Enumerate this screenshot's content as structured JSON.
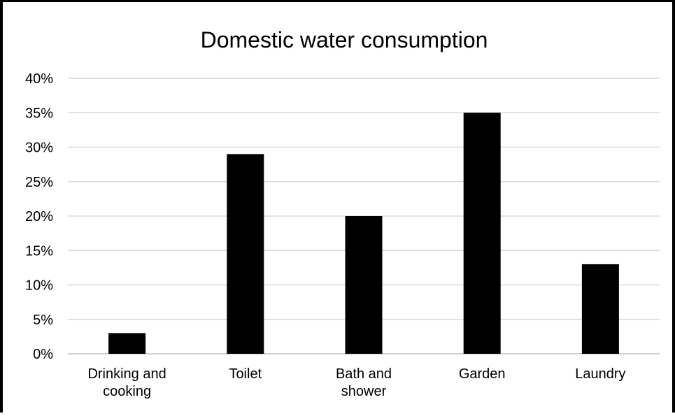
{
  "chart_data": {
    "type": "bar",
    "title": "Domestic water consumption",
    "xlabel": "",
    "ylabel": "",
    "categories": [
      "Drinking and cooking",
      "Toilet",
      "Bath and shower",
      "Garden",
      "Laundry"
    ],
    "category_lines": [
      [
        "Drinking and",
        "cooking"
      ],
      [
        "Toilet"
      ],
      [
        "Bath and",
        "shower"
      ],
      [
        "Garden"
      ],
      [
        "Laundry"
      ]
    ],
    "values": [
      3,
      29,
      20,
      35,
      13
    ],
    "unit": "%",
    "ylim": [
      0,
      40
    ],
    "yticks": [
      0,
      5,
      10,
      15,
      20,
      25,
      30,
      35,
      40
    ],
    "ytick_labels": [
      "0%",
      "5%",
      "10%",
      "15%",
      "20%",
      "25%",
      "30%",
      "35%",
      "40%"
    ],
    "grid": true,
    "legend": "none",
    "bar_color": "#000000",
    "grid_color": "#d9d9d9",
    "frame_color": "#000000"
  }
}
